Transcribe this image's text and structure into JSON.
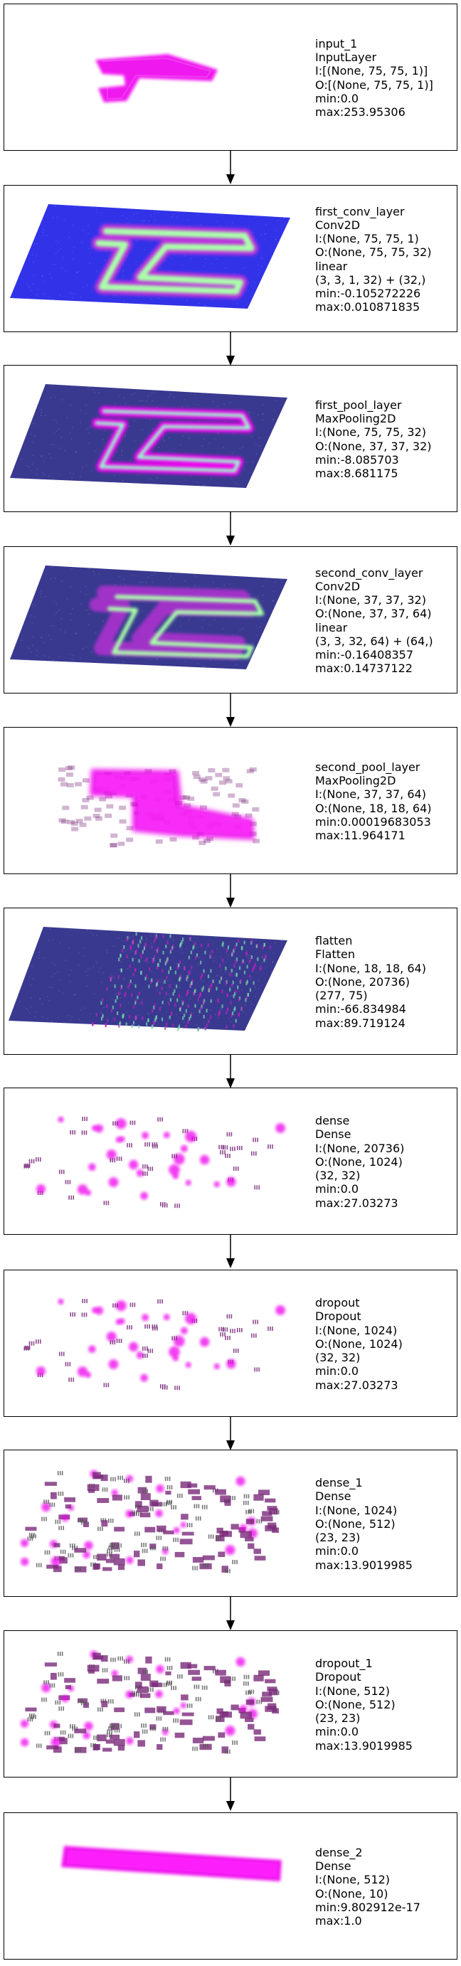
{
  "layers": [
    {
      "name": "input_1",
      "type": "InputLayer",
      "lines": [
        "I:[(None, 75, 75, 1)]",
        "O:[(None, 75, 75, 1)]",
        "min:0.0",
        "max:253.95306"
      ],
      "style": "digit-pink"
    },
    {
      "name": "first_conv_layer",
      "type": "Conv2D",
      "lines": [
        "I:(None, 75, 75, 1)",
        "O:(None, 75, 75, 32)",
        "linear",
        "(3, 3, 1, 32) + (32,)",
        "min:-0.105272226",
        "max:0.010871835"
      ],
      "style": "plane-blue-green"
    },
    {
      "name": "first_pool_layer",
      "type": "MaxPooling2D",
      "lines": [
        "I:(None, 75, 75, 32)",
        "O:(None, 37, 37, 32)",
        "min:-8.085703",
        "max:8.681175"
      ],
      "style": "plane-navy-pink"
    },
    {
      "name": "second_conv_layer",
      "type": "Conv2D",
      "lines": [
        "I:(None, 37, 37, 32)",
        "O:(None, 37, 37, 64)",
        "linear",
        "(3, 3, 32, 64) + (64,)",
        "min:-0.16408357",
        "max:0.14737122"
      ],
      "style": "plane-navy-double"
    },
    {
      "name": "second_pool_layer",
      "type": "MaxPooling2D",
      "lines": [
        "I:(None, 37, 37, 64)",
        "O:(None, 18, 18, 64)",
        "min:0.00019683053",
        "max:11.964171"
      ],
      "style": "blocky-pink"
    },
    {
      "name": "flatten",
      "type": "Flatten",
      "lines": [
        "I:(None, 18, 18, 64)",
        "O:(None, 20736)",
        "(277, 75)",
        "min:-66.834984",
        "max:89.719124"
      ],
      "style": "plane-stripes"
    },
    {
      "name": "dense",
      "type": "Dense",
      "lines": [
        "I:(None, 20736)",
        "O:(None, 1024)",
        "(32, 32)",
        "min:0.0",
        "max:27.03273"
      ],
      "style": "sparse"
    },
    {
      "name": "dropout",
      "type": "Dropout",
      "lines": [
        "I:(None, 1024)",
        "O:(None, 1024)",
        "(32, 32)",
        "min:0.0",
        "max:27.03273"
      ],
      "style": "sparse"
    },
    {
      "name": "dense_1",
      "type": "Dense",
      "lines": [
        "I:(None, 1024)",
        "O:(None, 512)",
        "(23, 23)",
        "min:0.0",
        "max:13.9019985"
      ],
      "style": "dense-blocks"
    },
    {
      "name": "dropout_1",
      "type": "Dropout",
      "lines": [
        "I:(None, 512)",
        "O:(None, 512)",
        "(23, 23)",
        "min:0.0",
        "max:13.9019985"
      ],
      "style": "dense-blocks"
    },
    {
      "name": "dense_2",
      "type": "Dense",
      "lines": [
        "I:(None, 512)",
        "O:(None, 10)",
        "min:9.802912e-17",
        "max:1.0"
      ],
      "style": "bar"
    }
  ],
  "colors": {
    "pink": "#ee00ee",
    "purple": "#7a2a7a",
    "blue": "#2222dd",
    "navy": "#2e2e8a",
    "green": "#aaffaa"
  }
}
